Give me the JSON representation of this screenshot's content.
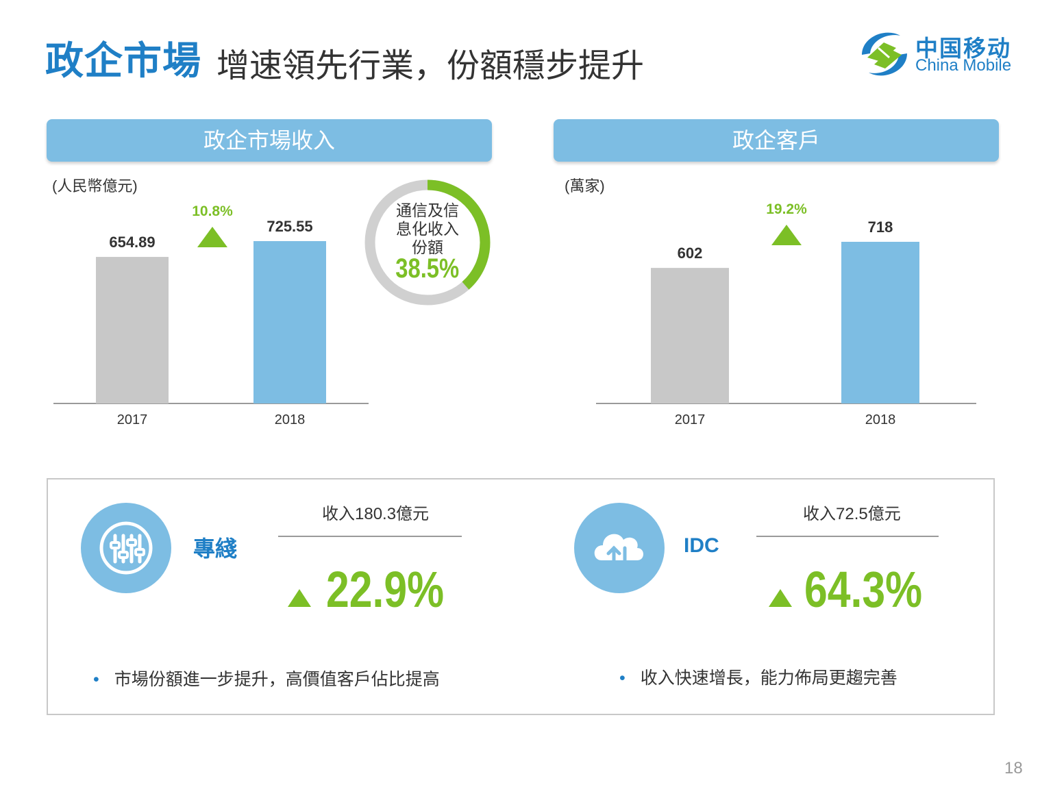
{
  "header": {
    "title_main": "政企市場",
    "title_sub": "增速領先行業，份額穩步提升",
    "logo_cn": "中国移动",
    "logo_en": "China Mobile"
  },
  "panels": {
    "left": {
      "title": "政企市場收入",
      "unit": "(人民幣億元)"
    },
    "right": {
      "title": "政企客戶",
      "unit": "(萬家)"
    }
  },
  "donut": {
    "label_line1": "通信及信",
    "label_line2": "息化收入",
    "label_line3": "份額",
    "value_text": "38.5%",
    "fraction": 0.385
  },
  "chart_data": [
    {
      "type": "bar",
      "categories": [
        "2017",
        "2018"
      ],
      "values": [
        654.89,
        725.55
      ],
      "value_labels": [
        "654.89",
        "725.55"
      ],
      "growth": "10.8%",
      "colors": [
        "#c8c8c8",
        "#7dbde3"
      ]
    },
    {
      "type": "bar",
      "categories": [
        "2017",
        "2018"
      ],
      "values": [
        602,
        718
      ],
      "value_labels": [
        "602",
        "718"
      ],
      "growth": "19.2%",
      "colors": [
        "#c8c8c8",
        "#7dbde3"
      ]
    }
  ],
  "features": [
    {
      "name": "專綫",
      "icon": "sliders-icon",
      "revenue": "收入180.3億元",
      "growth": "22.9%",
      "bullet": "市場份額進一步提升，高價值客戶佔比提高"
    },
    {
      "name": "IDC",
      "icon": "cloud-transfer-icon",
      "revenue": "收入72.5億元",
      "growth": "64.3%",
      "bullet": "收入快速增長，能力佈局更趨完善"
    }
  ],
  "page_number": "18",
  "colors": {
    "accent_blue": "#1f7fc6",
    "bar_blue": "#7dbde3",
    "bar_gray": "#c8c8c8",
    "green": "#7cbf26"
  }
}
